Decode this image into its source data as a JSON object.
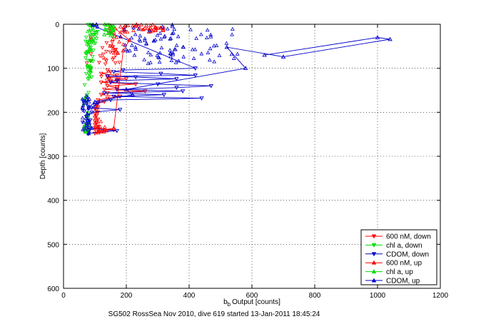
{
  "figure": {
    "caption": "SG502 RossSea Nov 2010, dive 619 started 13-Jan-2011 18:45:24"
  },
  "chart_data": {
    "type": "scatter",
    "title": "",
    "xlabel": "Output [counts]",
    "xlabel_symbol": "b",
    "xlabel_subscript": "b",
    "ylabel": "Depth [counts]",
    "xlim": [
      0,
      1200
    ],
    "ylim": [
      0,
      600
    ],
    "y_reversed": true,
    "grid": true,
    "grid_style": "dotted",
    "legend_position": "bottom-right",
    "xticks": [
      "0",
      "200",
      "400",
      "600",
      "800",
      "1000",
      "1200"
    ],
    "yticks": [
      "0",
      "100",
      "200",
      "300",
      "400",
      "500",
      "600"
    ],
    "series": [
      {
        "name": "600 nM, down",
        "color": "#ff0000",
        "marker": "triangle-down",
        "line": true,
        "points": [
          [
            140,
            104
          ],
          [
            150,
            108
          ],
          [
            120,
            112
          ],
          [
            170,
            116
          ],
          [
            140,
            120
          ],
          [
            200,
            124
          ],
          [
            150,
            128
          ],
          [
            120,
            132
          ],
          [
            230,
            136
          ],
          [
            140,
            140
          ],
          [
            170,
            144
          ],
          [
            130,
            148
          ],
          [
            260,
            152
          ],
          [
            140,
            156
          ],
          [
            120,
            160
          ],
          [
            180,
            164
          ],
          [
            140,
            168
          ],
          [
            110,
            172
          ],
          [
            130,
            176
          ],
          [
            110,
            180
          ],
          [
            105,
            184
          ],
          [
            110,
            188
          ],
          [
            100,
            192
          ],
          [
            105,
            196
          ],
          [
            110,
            200
          ],
          [
            100,
            204
          ],
          [
            105,
            208
          ],
          [
            100,
            212
          ],
          [
            110,
            216
          ],
          [
            100,
            220
          ],
          [
            105,
            224
          ],
          [
            100,
            228
          ],
          [
            110,
            232
          ],
          [
            100,
            236
          ],
          [
            160,
            240
          ],
          [
            105,
            244
          ],
          [
            100,
            248
          ]
        ],
        "cloud": [
          {
            "x": [
              70,
              95
            ],
            "y": [
              0,
              100
            ],
            "n": 6
          },
          {
            "x": [
              105,
              180
            ],
            "y": [
              40,
              140
            ],
            "n": 30
          }
        ]
      },
      {
        "name": "chl a, down",
        "color": "#00dd00",
        "marker": "triangle-down",
        "line": false,
        "points": [],
        "cloud": [
          {
            "x": [
              70,
              95
            ],
            "y": [
              0,
              120
            ],
            "n": 40
          },
          {
            "x": [
              90,
              110
            ],
            "y": [
              4,
              44
            ],
            "n": 18
          },
          {
            "x": [
              62,
              82
            ],
            "y": [
              120,
              250
            ],
            "n": 18
          }
        ]
      },
      {
        "name": "CDOM, down",
        "color": "#0000cc",
        "marker": "triangle-down",
        "line": true,
        "points": [
          [
            90,
            2
          ],
          [
            420,
            100
          ],
          [
            190,
            104
          ],
          [
            160,
            108
          ],
          [
            310,
            112
          ],
          [
            420,
            116
          ],
          [
            140,
            118
          ],
          [
            230,
            120
          ],
          [
            360,
            124
          ],
          [
            170,
            128
          ],
          [
            150,
            132
          ],
          [
            300,
            136
          ],
          [
            470,
            140
          ],
          [
            360,
            144
          ],
          [
            170,
            148
          ],
          [
            380,
            152
          ],
          [
            130,
            156
          ],
          [
            320,
            160
          ],
          [
            160,
            164
          ],
          [
            440,
            168
          ],
          [
            150,
            172
          ],
          [
            110,
            178
          ],
          [
            100,
            184
          ],
          [
            90,
            190
          ],
          [
            180,
            194
          ],
          [
            90,
            200
          ],
          [
            80,
            206
          ],
          [
            75,
            212
          ],
          [
            85,
            218
          ],
          [
            80,
            224
          ],
          [
            75,
            230
          ],
          [
            80,
            236
          ],
          [
            170,
            242
          ],
          [
            80,
            248
          ]
        ],
        "cloud": [
          {
            "x": [
              60,
              85
            ],
            "y": [
              170,
              250
            ],
            "n": 25
          }
        ]
      },
      {
        "name": "600 nM, up",
        "color": "#ff0000",
        "marker": "triangle-up",
        "line": true,
        "points": [
          [
            165,
            10
          ],
          [
            210,
            36
          ],
          [
            190,
            60
          ],
          [
            160,
            236
          ],
          [
            130,
            240
          ],
          [
            110,
            244
          ]
        ],
        "cloud": [
          {
            "x": [
              190,
              320
            ],
            "y": [
              0,
              18
            ],
            "n": 40
          },
          {
            "x": [
              145,
              200
            ],
            "y": [
              0,
              70
            ],
            "n": 25
          },
          {
            "x": [
              95,
              140
            ],
            "y": [
              220,
              248
            ],
            "n": 14
          }
        ]
      },
      {
        "name": "chl a, up",
        "color": "#00dd00",
        "marker": "triangle-up",
        "line": false,
        "points": [],
        "cloud": [
          {
            "x": [
              125,
              160
            ],
            "y": [
              0,
              28
            ],
            "n": 28
          },
          {
            "x": [
              75,
              95
            ],
            "y": [
              0,
              120
            ],
            "n": 20
          },
          {
            "x": [
              65,
              82
            ],
            "y": [
              200,
              250
            ],
            "n": 12
          }
        ]
      },
      {
        "name": "CDOM, up",
        "color": "#0000cc",
        "marker": "triangle-up",
        "line": true,
        "points": [
          [
            640,
            70
          ],
          [
            1000,
            30
          ],
          [
            1040,
            34
          ],
          [
            700,
            74
          ],
          [
            520,
            52
          ],
          [
            580,
            100
          ],
          [
            200,
            148
          ],
          [
            220,
            160
          ],
          [
            100,
            176
          ],
          [
            80,
            190
          ],
          [
            75,
            204
          ],
          [
            80,
            222
          ],
          [
            90,
            236
          ],
          [
            80,
            248
          ]
        ],
        "cloud": [
          {
            "x": [
              90,
              110
            ],
            "y": [
              0,
              6
            ],
            "n": 5
          },
          {
            "x": [
              180,
              360
            ],
            "y": [
              0,
              90
            ],
            "n": 60
          },
          {
            "x": [
              360,
              560
            ],
            "y": [
              10,
              90
            ],
            "n": 30
          },
          {
            "x": [
              60,
              85
            ],
            "y": [
              160,
              250
            ],
            "n": 20
          }
        ]
      }
    ]
  }
}
